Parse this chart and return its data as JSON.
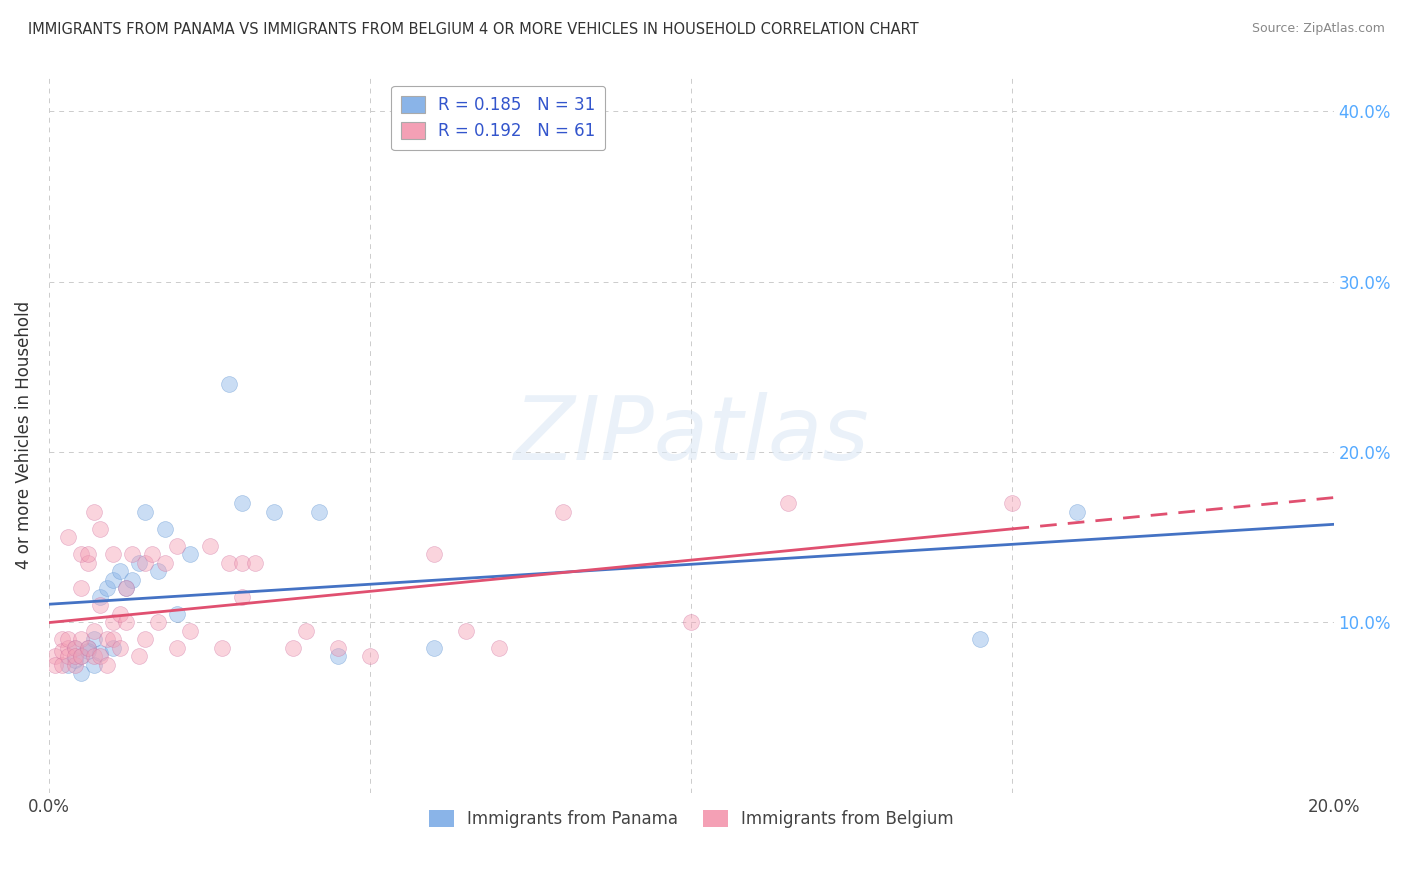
{
  "title": "IMMIGRANTS FROM PANAMA VS IMMIGRANTS FROM BELGIUM 4 OR MORE VEHICLES IN HOUSEHOLD CORRELATION CHART",
  "source": "Source: ZipAtlas.com",
  "ylabel": "4 or more Vehicles in Household",
  "xlim": [
    0.0,
    0.2
  ],
  "ylim": [
    0.0,
    0.42
  ],
  "xticks": [
    0.0,
    0.05,
    0.1,
    0.15,
    0.2
  ],
  "yticks": [
    0.0,
    0.1,
    0.2,
    0.3,
    0.4
  ],
  "panama": {
    "name": "Immigrants from Panama",
    "color": "#8ab4e8",
    "border_color": "#5a90d0",
    "R": 0.185,
    "N": 31,
    "trend_color": "#4472c4",
    "x": [
      0.003,
      0.004,
      0.004,
      0.005,
      0.005,
      0.006,
      0.006,
      0.007,
      0.007,
      0.008,
      0.008,
      0.009,
      0.01,
      0.01,
      0.011,
      0.012,
      0.013,
      0.014,
      0.015,
      0.017,
      0.018,
      0.02,
      0.022,
      0.028,
      0.03,
      0.035,
      0.042,
      0.045,
      0.06,
      0.145,
      0.16
    ],
    "y": [
      0.075,
      0.085,
      0.078,
      0.08,
      0.07,
      0.085,
      0.083,
      0.09,
      0.075,
      0.082,
      0.115,
      0.12,
      0.085,
      0.125,
      0.13,
      0.12,
      0.125,
      0.135,
      0.165,
      0.13,
      0.155,
      0.105,
      0.14,
      0.24,
      0.17,
      0.165,
      0.165,
      0.08,
      0.085,
      0.09,
      0.165
    ]
  },
  "belgium": {
    "name": "Immigrants from Belgium",
    "color": "#f4a0b5",
    "border_color": "#d070a0",
    "R": 0.192,
    "N": 61,
    "trend_color": "#e05070",
    "x": [
      0.001,
      0.001,
      0.002,
      0.002,
      0.002,
      0.003,
      0.003,
      0.003,
      0.003,
      0.004,
      0.004,
      0.004,
      0.005,
      0.005,
      0.005,
      0.005,
      0.006,
      0.006,
      0.006,
      0.007,
      0.007,
      0.007,
      0.008,
      0.008,
      0.008,
      0.009,
      0.009,
      0.01,
      0.01,
      0.01,
      0.011,
      0.011,
      0.012,
      0.012,
      0.013,
      0.014,
      0.015,
      0.015,
      0.016,
      0.017,
      0.018,
      0.02,
      0.02,
      0.022,
      0.025,
      0.027,
      0.028,
      0.03,
      0.03,
      0.032,
      0.038,
      0.04,
      0.045,
      0.05,
      0.06,
      0.065,
      0.07,
      0.08,
      0.1,
      0.115,
      0.15
    ],
    "y": [
      0.08,
      0.075,
      0.09,
      0.075,
      0.083,
      0.085,
      0.09,
      0.15,
      0.08,
      0.075,
      0.085,
      0.08,
      0.12,
      0.09,
      0.14,
      0.08,
      0.085,
      0.135,
      0.14,
      0.08,
      0.095,
      0.165,
      0.08,
      0.11,
      0.155,
      0.075,
      0.09,
      0.09,
      0.1,
      0.14,
      0.085,
      0.105,
      0.1,
      0.12,
      0.14,
      0.08,
      0.09,
      0.135,
      0.14,
      0.1,
      0.135,
      0.145,
      0.085,
      0.095,
      0.145,
      0.085,
      0.135,
      0.115,
      0.135,
      0.135,
      0.085,
      0.095,
      0.085,
      0.08,
      0.14,
      0.095,
      0.085,
      0.165,
      0.1,
      0.17,
      0.17
    ]
  },
  "watermark_text": "ZIPatlas",
  "background_color": "#ffffff",
  "grid_color": "#cccccc",
  "legend_text_color": "#3355cc",
  "right_axis_color": "#55aaff",
  "marker_size": 130,
  "marker_alpha": 0.45,
  "trend_lw": 2.0
}
